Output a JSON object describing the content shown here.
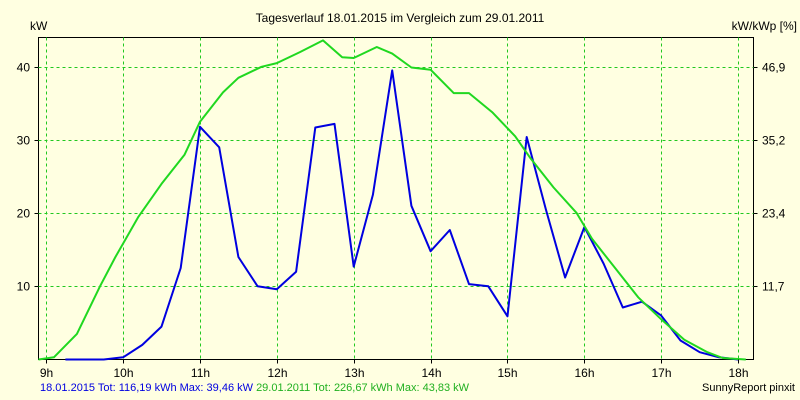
{
  "chart_data": {
    "type": "line",
    "title": "Tagesverlauf 18.01.2015 im Vergleich zum 29.01.2011",
    "ylabel_left": "kW",
    "ylabel_right": "kW/kWp [%]",
    "x_ticks": [
      "9h",
      "10h",
      "11h",
      "12h",
      "13h",
      "14h",
      "15h",
      "16h",
      "17h",
      "18h"
    ],
    "y_ticks_left": [
      "10",
      "20",
      "30",
      "40"
    ],
    "y_ticks_right": [
      "11,7",
      "23,4",
      "35,2",
      "46,9"
    ],
    "xlim": [
      8.9,
      18.2
    ],
    "ylim": [
      0,
      44
    ],
    "grid": true,
    "series": [
      {
        "name": "18.01.2015",
        "color": "#0000e0",
        "x": [
          9.25,
          9.5,
          9.75,
          10.0,
          10.25,
          10.5,
          10.75,
          11.0,
          11.25,
          11.5,
          11.75,
          12.0,
          12.25,
          12.5,
          12.75,
          13.0,
          13.25,
          13.5,
          13.75,
          14.0,
          14.25,
          14.5,
          14.75,
          15.0,
          15.25,
          15.5,
          15.75,
          16.0,
          16.25,
          16.5,
          16.75,
          17.0,
          17.25,
          17.5,
          17.75,
          18.0
        ],
        "y": [
          0,
          0,
          0,
          0.3,
          2,
          4.5,
          12.5,
          31.8,
          29,
          14,
          10,
          9.6,
          12,
          31.7,
          32.2,
          12.7,
          22.5,
          39.5,
          21,
          14.8,
          17.7,
          10.3,
          10,
          5.9,
          30.4,
          20.5,
          11.2,
          18.1,
          13.1,
          7.1,
          7.9,
          6,
          2.6,
          1,
          0.3,
          0
        ]
      },
      {
        "name": "29.01.2011",
        "color": "#20d820",
        "x": [
          8.9,
          9.1,
          9.4,
          9.7,
          9.9,
          10.2,
          10.5,
          10.8,
          11.0,
          11.3,
          11.5,
          11.8,
          12.0,
          12.3,
          12.6,
          12.85,
          13.0,
          13.3,
          13.5,
          13.75,
          14.0,
          14.3,
          14.5,
          14.8,
          15.1,
          15.3,
          15.6,
          15.9,
          16.1,
          16.4,
          16.7,
          17.0,
          17.3,
          17.6,
          17.8,
          18.1
        ],
        "y": [
          0,
          0.3,
          3.5,
          10,
          14,
          19.5,
          24,
          28,
          32.5,
          36.5,
          38.5,
          40,
          40.5,
          42,
          43.6,
          41.3,
          41.2,
          42.7,
          41.8,
          39.9,
          39.6,
          36.4,
          36.4,
          33.8,
          30.5,
          27.5,
          23.5,
          20,
          16.5,
          12.5,
          8.5,
          5.5,
          2.7,
          1,
          0.2,
          0
        ]
      }
    ]
  },
  "footer": {
    "part1": "18.01.2015 Tot: 116,19 kWh Max: 39,46 kW",
    "part2": "29.01.2011 Tot: 226,67 kWh Max: 43,83 kW",
    "credit": "SunnyReport pinxit"
  }
}
